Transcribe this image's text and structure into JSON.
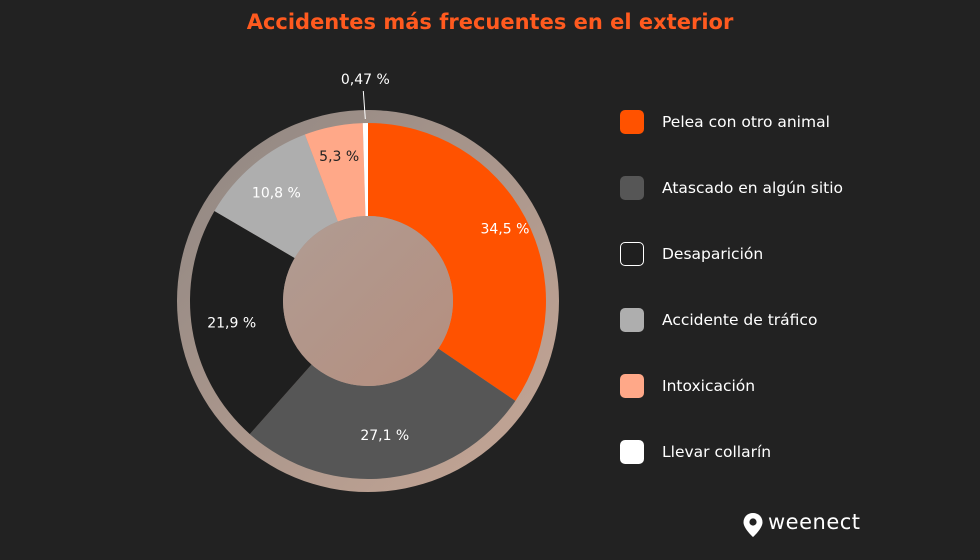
{
  "chart_data": {
    "type": "pie",
    "title": "Accidentes más frecuentes en el exterior",
    "categories": [
      "Pelea con otro animal",
      "Atascado en algún sitio",
      "Desaparición",
      "Accidente de tráfico",
      "Intoxicación",
      "Llevar collarín"
    ],
    "values": [
      34.5,
      27.1,
      21.9,
      10.8,
      5.3,
      0.47
    ],
    "labels": [
      "34,5 %",
      "27,1 %",
      "21,9 %",
      "10,8 %",
      "5,3 %",
      "0,47 %"
    ],
    "colors": [
      "#ff5200",
      "#565656",
      "#1f1f1f",
      "#aeaeae",
      "#ffa888",
      "#ffffff"
    ],
    "label_colors": [
      "#ffffff",
      "#ffffff",
      "#ffffff",
      "#ffffff",
      "#222222",
      "#ffffff"
    ],
    "legend_position": "right",
    "style": "donut"
  },
  "legend": {
    "items": [
      {
        "label": "Pelea con otro animal",
        "color": "#ff5200"
      },
      {
        "label": "Atascado en algún sitio",
        "color": "#565656"
      },
      {
        "label": "Desaparición",
        "color": "#1f1f1f"
      },
      {
        "label": "Accidente de tráfico",
        "color": "#aeaeae"
      },
      {
        "label": "Intoxicación",
        "color": "#ffa888"
      },
      {
        "label": "Llevar collarín",
        "color": "#ffffff"
      }
    ]
  },
  "brand": {
    "name": "weenect",
    "icon": "location-pin-icon"
  }
}
